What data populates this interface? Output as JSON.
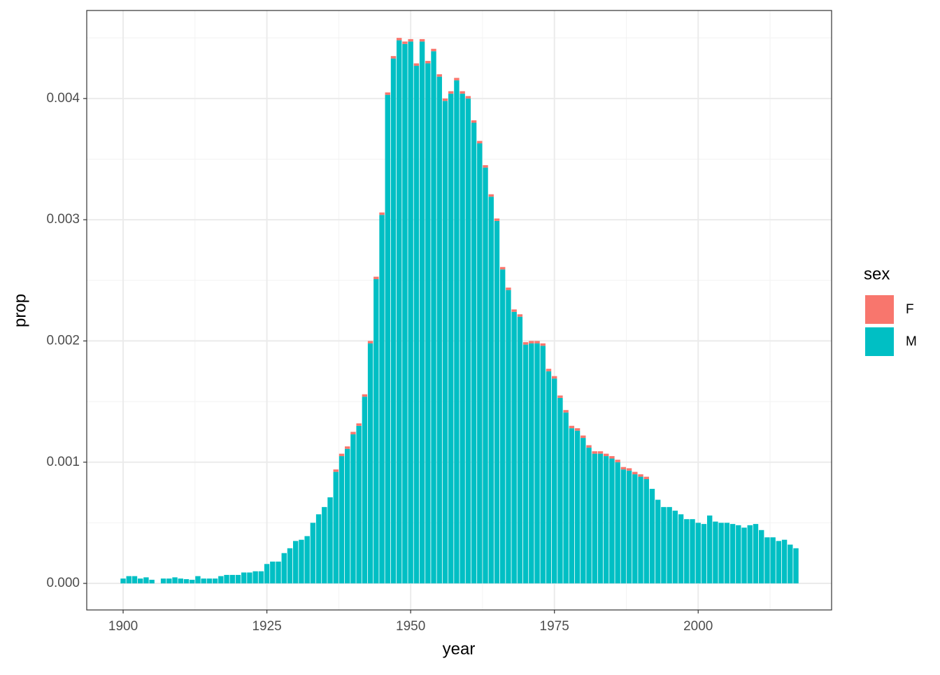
{
  "chart_data": {
    "type": "bar",
    "stacked": true,
    "x_label": "year",
    "y_label": "prop",
    "x": [
      1900,
      1901,
      1902,
      1903,
      1904,
      1905,
      1907,
      1908,
      1909,
      1910,
      1911,
      1912,
      1913,
      1914,
      1915,
      1916,
      1917,
      1918,
      1919,
      1920,
      1921,
      1922,
      1923,
      1924,
      1925,
      1926,
      1927,
      1928,
      1929,
      1930,
      1931,
      1932,
      1933,
      1934,
      1935,
      1936,
      1937,
      1938,
      1939,
      1940,
      1941,
      1942,
      1943,
      1944,
      1945,
      1946,
      1947,
      1948,
      1949,
      1950,
      1951,
      1952,
      1953,
      1954,
      1955,
      1956,
      1957,
      1958,
      1959,
      1960,
      1961,
      1962,
      1963,
      1964,
      1965,
      1966,
      1967,
      1968,
      1969,
      1970,
      1971,
      1972,
      1973,
      1974,
      1975,
      1976,
      1977,
      1978,
      1979,
      1980,
      1981,
      1982,
      1983,
      1984,
      1985,
      1986,
      1987,
      1988,
      1989,
      1990,
      1991,
      1992,
      1993,
      1994,
      1995,
      1996,
      1997,
      1998,
      1999,
      2000,
      2001,
      2002,
      2003,
      2004,
      2005,
      2006,
      2007,
      2008,
      2009,
      2010,
      2011,
      2012,
      2013,
      2014,
      2015,
      2016,
      2017
    ],
    "series": [
      {
        "name": "M",
        "color": "#00bfc4",
        "values": [
          4e-05,
          6e-05,
          6e-05,
          4e-05,
          5e-05,
          3e-05,
          4e-05,
          4e-05,
          5e-05,
          4e-05,
          3.5e-05,
          3e-05,
          6e-05,
          4e-05,
          4e-05,
          4e-05,
          6e-05,
          7e-05,
          7e-05,
          7e-05,
          9e-05,
          9e-05,
          0.0001,
          0.0001,
          0.00016,
          0.00018,
          0.00018,
          0.00025,
          0.00029,
          0.00035,
          0.00036,
          0.00039,
          0.0005,
          0.00057,
          0.00063,
          0.00071,
          0.00092,
          0.00105,
          0.00111,
          0.00123,
          0.0013,
          0.00154,
          0.00198,
          0.00251,
          0.00304,
          0.00403,
          0.00433,
          0.00448,
          0.00445,
          0.00447,
          0.00427,
          0.00447,
          0.00429,
          0.00439,
          0.00418,
          0.00398,
          0.00404,
          0.00415,
          0.00404,
          0.004,
          0.0038,
          0.00363,
          0.00343,
          0.00319,
          0.00299,
          0.00259,
          0.00242,
          0.00224,
          0.0022,
          0.00197,
          0.00198,
          0.00198,
          0.00196,
          0.00175,
          0.00169,
          0.00153,
          0.00141,
          0.00128,
          0.00126,
          0.0012,
          0.00112,
          0.00107,
          0.00107,
          0.00105,
          0.00103,
          0.001,
          0.00094,
          0.00093,
          0.0009,
          0.00088,
          0.00086,
          0.00078,
          0.00069,
          0.00063,
          0.00063,
          0.0006,
          0.00057,
          0.00053,
          0.00053,
          0.0005,
          0.00049,
          0.00056,
          0.00051,
          0.0005,
          0.0005,
          0.00049,
          0.00048,
          0.00046,
          0.00048,
          0.00049,
          0.00044,
          0.00038,
          0.00038,
          0.00035,
          0.00036,
          0.00032,
          0.00029
        ]
      },
      {
        "name": "F",
        "color": "#f8766d",
        "values": [
          0,
          0,
          0,
          0,
          0,
          0,
          0,
          0,
          0,
          0,
          0,
          0,
          0,
          0,
          0,
          0,
          0,
          0,
          0,
          0,
          0,
          0,
          0,
          0,
          0,
          0,
          0,
          0,
          0,
          0,
          0,
          0,
          0,
          0,
          0,
          0,
          2e-05,
          2e-05,
          2e-05,
          2e-05,
          2e-05,
          2e-05,
          2e-05,
          2e-05,
          2e-05,
          2e-05,
          2e-05,
          2e-05,
          2e-05,
          2e-05,
          2e-05,
          2e-05,
          2e-05,
          2e-05,
          2e-05,
          2e-05,
          2e-05,
          2e-05,
          2e-05,
          2e-05,
          2e-05,
          2e-05,
          2e-05,
          2e-05,
          2e-05,
          2e-05,
          2e-05,
          2e-05,
          2e-05,
          2e-05,
          2e-05,
          2e-05,
          2e-05,
          2e-05,
          2e-05,
          2e-05,
          2e-05,
          2e-05,
          2e-05,
          2e-05,
          2e-05,
          2e-05,
          2e-05,
          2e-05,
          2e-05,
          2e-05,
          2e-05,
          2e-05,
          2e-05,
          2e-05,
          2e-05,
          0,
          0,
          0,
          0,
          0,
          0,
          0,
          0,
          0,
          0,
          0,
          0,
          0,
          0,
          0,
          0,
          0,
          0,
          0,
          0,
          0,
          0,
          0,
          0,
          0,
          0
        ]
      }
    ],
    "legend_title": "sex",
    "legend_order": [
      "F",
      "M"
    ],
    "legend_position": "right",
    "xlim": [
      1893.67,
      2023.2
    ],
    "xticks": [
      1900,
      1925,
      1950,
      1975,
      2000
    ],
    "xminor": [
      1912.5,
      1937.5,
      1962.5,
      1987.5,
      2012.5
    ],
    "ylim": [
      -0.000219,
      0.004726
    ],
    "yticks": [
      {
        "value": 0,
        "label": "0.000"
      },
      {
        "value": 0.001,
        "label": "0.001"
      },
      {
        "value": 0.002,
        "label": "0.002"
      },
      {
        "value": 0.003,
        "label": "0.003"
      },
      {
        "value": 0.004,
        "label": "0.004"
      }
    ],
    "yminor": [
      0.0005,
      0.0015,
      0.0025,
      0.0035,
      0.0045
    ],
    "bar_width": 0.9,
    "grid": true
  }
}
